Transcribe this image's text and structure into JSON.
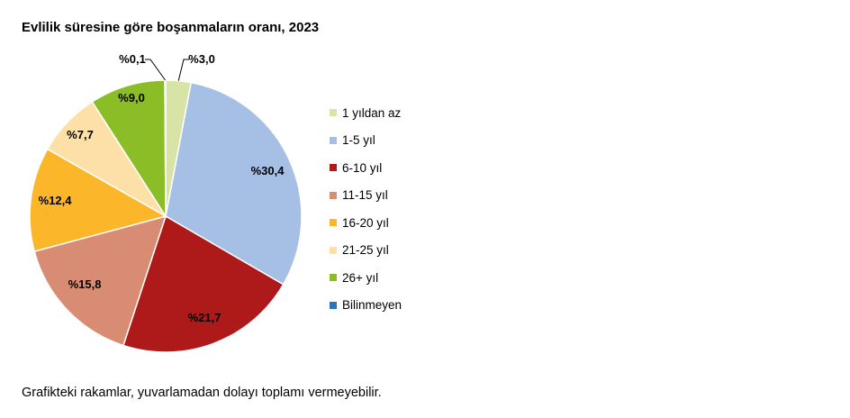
{
  "title": "Evlilik süresine göre boşanmaların oranı, 2023",
  "footnote": "Grafikteki rakamlar, yuvarlamadan dolayı toplamı vermeyebilir.",
  "chart_data": {
    "type": "pie",
    "title": "Evlilik süresine göre boşanmaların oranı, 2023",
    "legend_position": "right",
    "slices": [
      {
        "name": "1 yıldan az",
        "value": 3.0,
        "label": "%3,0",
        "color": "#d7e4a5"
      },
      {
        "name": "1-5 yıl",
        "value": 30.4,
        "label": "%30,4",
        "color": "#a6bfe4"
      },
      {
        "name": "6-10 yıl",
        "value": 21.7,
        "label": "%21,7",
        "color": "#ae1a1a"
      },
      {
        "name": "11-15 yıl",
        "value": 15.8,
        "label": "%15,8",
        "color": "#d98c74"
      },
      {
        "name": "16-20 yıl",
        "value": 12.4,
        "label": "%12,4",
        "color": "#fbb62a"
      },
      {
        "name": "21-25 yıl",
        "value": 7.7,
        "label": "%7,7",
        "color": "#fde0a8"
      },
      {
        "name": "26+ yıl",
        "value": 9.0,
        "label": "%9,0",
        "color": "#8bbd26"
      },
      {
        "name": "Bilinmeyen",
        "value": 0.1,
        "label": "%0,1",
        "color": "#2e75b6"
      }
    ]
  }
}
